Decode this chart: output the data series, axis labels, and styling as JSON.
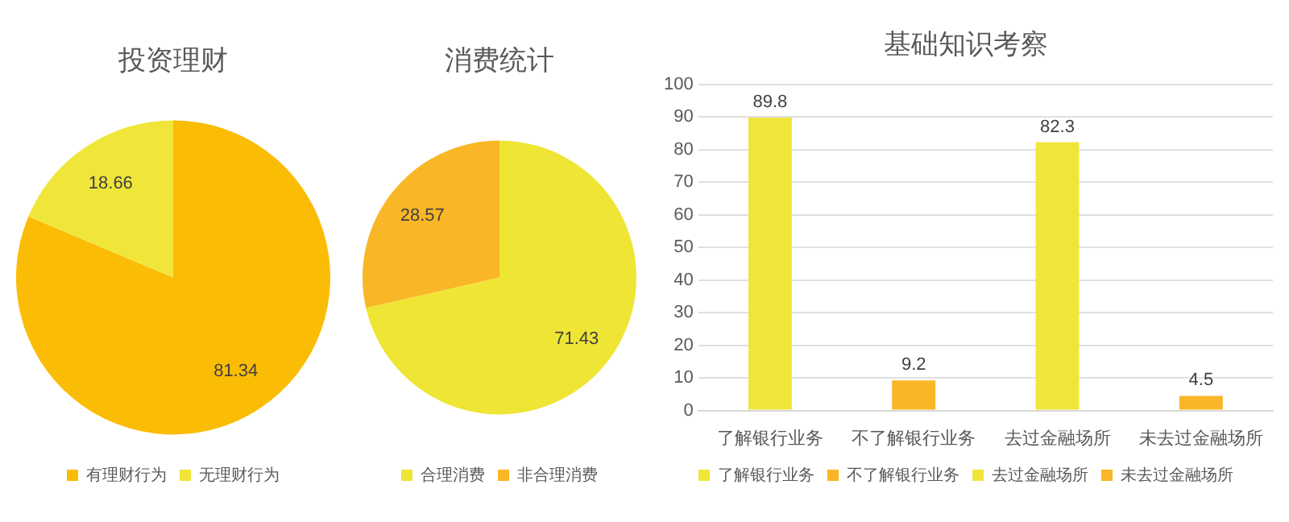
{
  "chart_data": [
    {
      "type": "pie",
      "title": "投资理财",
      "categories": [
        "有理财行为",
        "无理财行为"
      ],
      "values": [
        81.34,
        18.66
      ],
      "colors": [
        "#fbbc05",
        "#f0e63a"
      ],
      "data_labels": true,
      "legend": "bottom"
    },
    {
      "type": "pie",
      "title": "消费统计",
      "categories": [
        "合理消费",
        "非合理消费"
      ],
      "values": [
        71.43,
        28.57
      ],
      "colors": [
        "#efe534",
        "#f9b626"
      ],
      "data_labels": true,
      "legend": "bottom"
    },
    {
      "type": "bar",
      "title": "基础知识考察",
      "categories": [
        "了解银行业务",
        "不了解银行业务",
        "去过金融场所",
        "未去过金融场所"
      ],
      "series": [
        {
          "name": "了解银行业务",
          "color": "#f0e63a",
          "values": [
            89.8,
            null,
            null,
            null
          ]
        },
        {
          "name": "不了解银行业务",
          "color": "#f9b626",
          "values": [
            null,
            9.2,
            null,
            null
          ]
        },
        {
          "name": "去过金融场所",
          "color": "#f0e63a",
          "values": [
            null,
            null,
            82.3,
            null
          ]
        },
        {
          "name": "未去过金融场所",
          "color": "#f9b626",
          "values": [
            null,
            null,
            null,
            4.5
          ]
        }
      ],
      "ylim": [
        0,
        100
      ],
      "yticks": [
        0,
        10,
        20,
        30,
        40,
        50,
        60,
        70,
        80,
        90,
        100
      ],
      "grid": "y",
      "data_labels": true,
      "legend": "bottom"
    }
  ]
}
